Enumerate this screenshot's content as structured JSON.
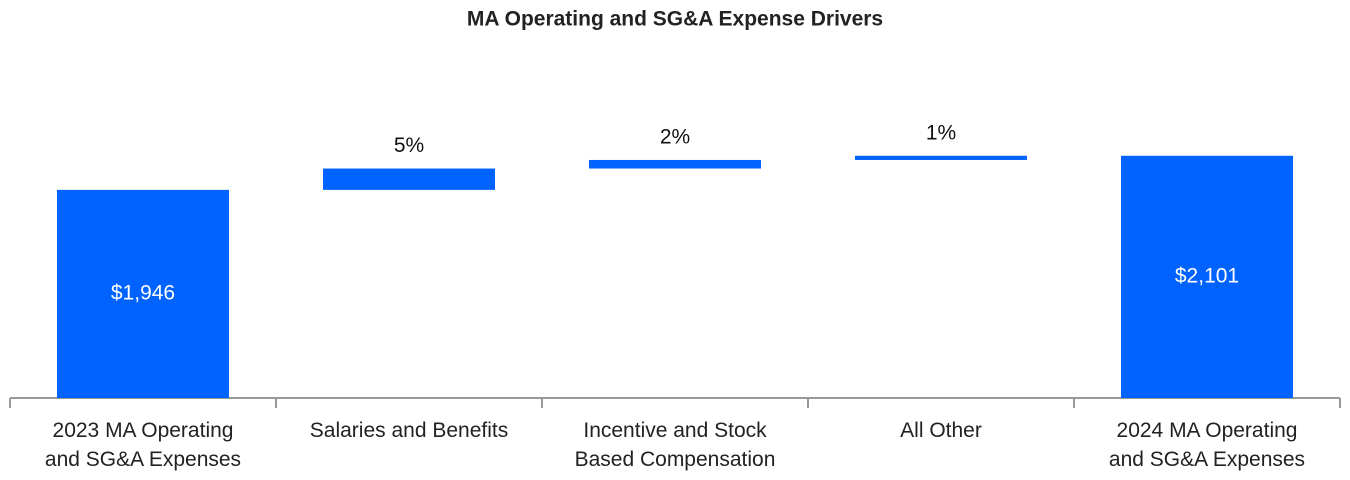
{
  "chart_data": {
    "type": "waterfall",
    "title": "MA Operating and SG&A Expense Drivers",
    "categories": [
      "2023 MA Operating\nand SG&A Expenses",
      "Salaries and Benefits",
      "Incentive and Stock\nBased Compensation",
      "All Other",
      "2024 MA Operating\nand SG&A Expenses"
    ],
    "values": [
      1946,
      97,
      39,
      19,
      2101
    ],
    "value_labels": [
      "$1,946",
      "5%",
      "2%",
      "1%",
      "$2,101"
    ],
    "totals": [
      0,
      4
    ],
    "color": "#0062ff",
    "ylim": [
      1000,
      2150
    ]
  }
}
